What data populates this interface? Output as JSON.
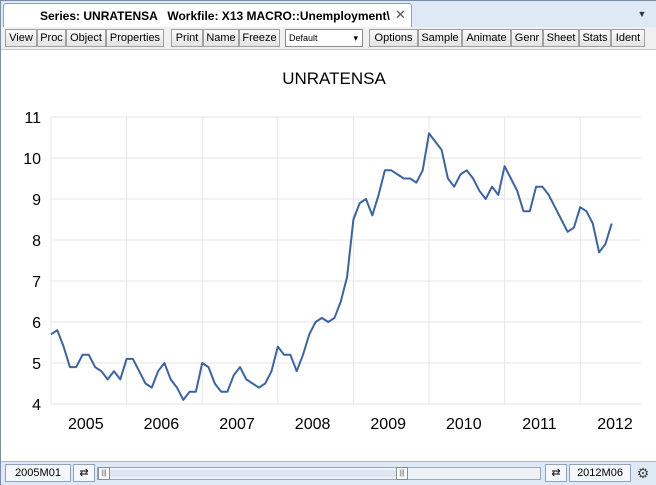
{
  "window": {
    "title": "Series: UNRATENSA   Workfile: X13 MACRO::Unemployment\\",
    "close_glyph": "✕",
    "menu_glyph": "▼"
  },
  "toolbar": {
    "buttons": [
      "View",
      "Proc",
      "Object",
      "Properties",
      "Print",
      "Name",
      "Freeze",
      "Options",
      "Sample",
      "Animate",
      "Genr",
      "Sheet",
      "Stats",
      "Ident"
    ],
    "select_value": "Default",
    "select_glyph": "▾"
  },
  "status": {
    "start": "2005M01",
    "end": "2012M06",
    "left_arrow": "⇄",
    "right_arrow": "⇄",
    "gear_glyph": "⚙",
    "handle_glyph": "|||"
  },
  "chart_data": {
    "type": "line",
    "title": "UNRATENSA",
    "xlabel": "",
    "ylabel": "",
    "ylim": [
      4,
      11
    ],
    "yticks": [
      "4",
      "5",
      "6",
      "7",
      "8",
      "9",
      "10",
      "11"
    ],
    "xticks": [
      "2005",
      "2006",
      "2007",
      "2008",
      "2009",
      "2010",
      "2011",
      "2012"
    ],
    "grid": true,
    "color": "#3a63a8",
    "start_period": "2005M01",
    "values": [
      5.7,
      5.8,
      5.4,
      4.9,
      4.9,
      5.2,
      5.2,
      4.9,
      4.8,
      4.6,
      4.8,
      4.6,
      5.1,
      5.1,
      4.8,
      4.5,
      4.4,
      4.8,
      5.0,
      4.6,
      4.4,
      4.1,
      4.3,
      4.3,
      5.0,
      4.9,
      4.5,
      4.3,
      4.3,
      4.7,
      4.9,
      4.6,
      4.5,
      4.4,
      4.5,
      4.8,
      5.4,
      5.2,
      5.2,
      4.8,
      5.2,
      5.7,
      6.0,
      6.1,
      6.0,
      6.1,
      6.5,
      7.1,
      8.5,
      8.9,
      9.0,
      8.6,
      9.1,
      9.7,
      9.7,
      9.6,
      9.5,
      9.5,
      9.4,
      9.7,
      10.6,
      10.4,
      10.2,
      9.5,
      9.3,
      9.6,
      9.7,
      9.5,
      9.2,
      9.0,
      9.3,
      9.1,
      9.8,
      9.5,
      9.2,
      8.7,
      8.7,
      9.3,
      9.3,
      9.1,
      8.8,
      8.5,
      8.2,
      8.3,
      8.8,
      8.7,
      8.4,
      7.7,
      7.9,
      8.4
    ]
  }
}
